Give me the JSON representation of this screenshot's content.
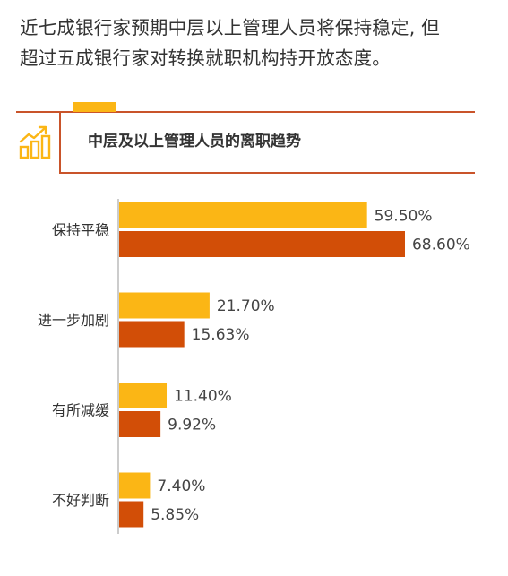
{
  "headline": {
    "line1": "近七成银行家预期中层以上管理人员将保持稳定, 但",
    "line2": "超过五成银行家对转换就职机构持开放态度。"
  },
  "section": {
    "icon": "bar-growth-chart-icon",
    "accent_color": "#fbb615",
    "line_color": "#c9542a"
  },
  "chart_data": {
    "type": "bar",
    "orientation": "horizontal",
    "title": "中层及以上管理人员的离职趋势",
    "categories": [
      "保持平稳",
      "进一步加剧",
      "有所减缓",
      "不好判断"
    ],
    "series": [
      {
        "color": "#fbb615",
        "values": [
          59.5,
          21.7,
          11.4,
          7.4
        ],
        "labels": [
          "59.50%",
          "21.70%",
          "11.40%",
          "7.40%"
        ]
      },
      {
        "color": "#d24e07",
        "values": [
          68.6,
          15.63,
          9.92,
          5.85
        ],
        "labels": [
          "68.60%",
          "15.63%",
          "9.92%",
          "5.85%"
        ]
      }
    ],
    "xlim": [
      0,
      100
    ],
    "grid": false,
    "legend": "none"
  }
}
